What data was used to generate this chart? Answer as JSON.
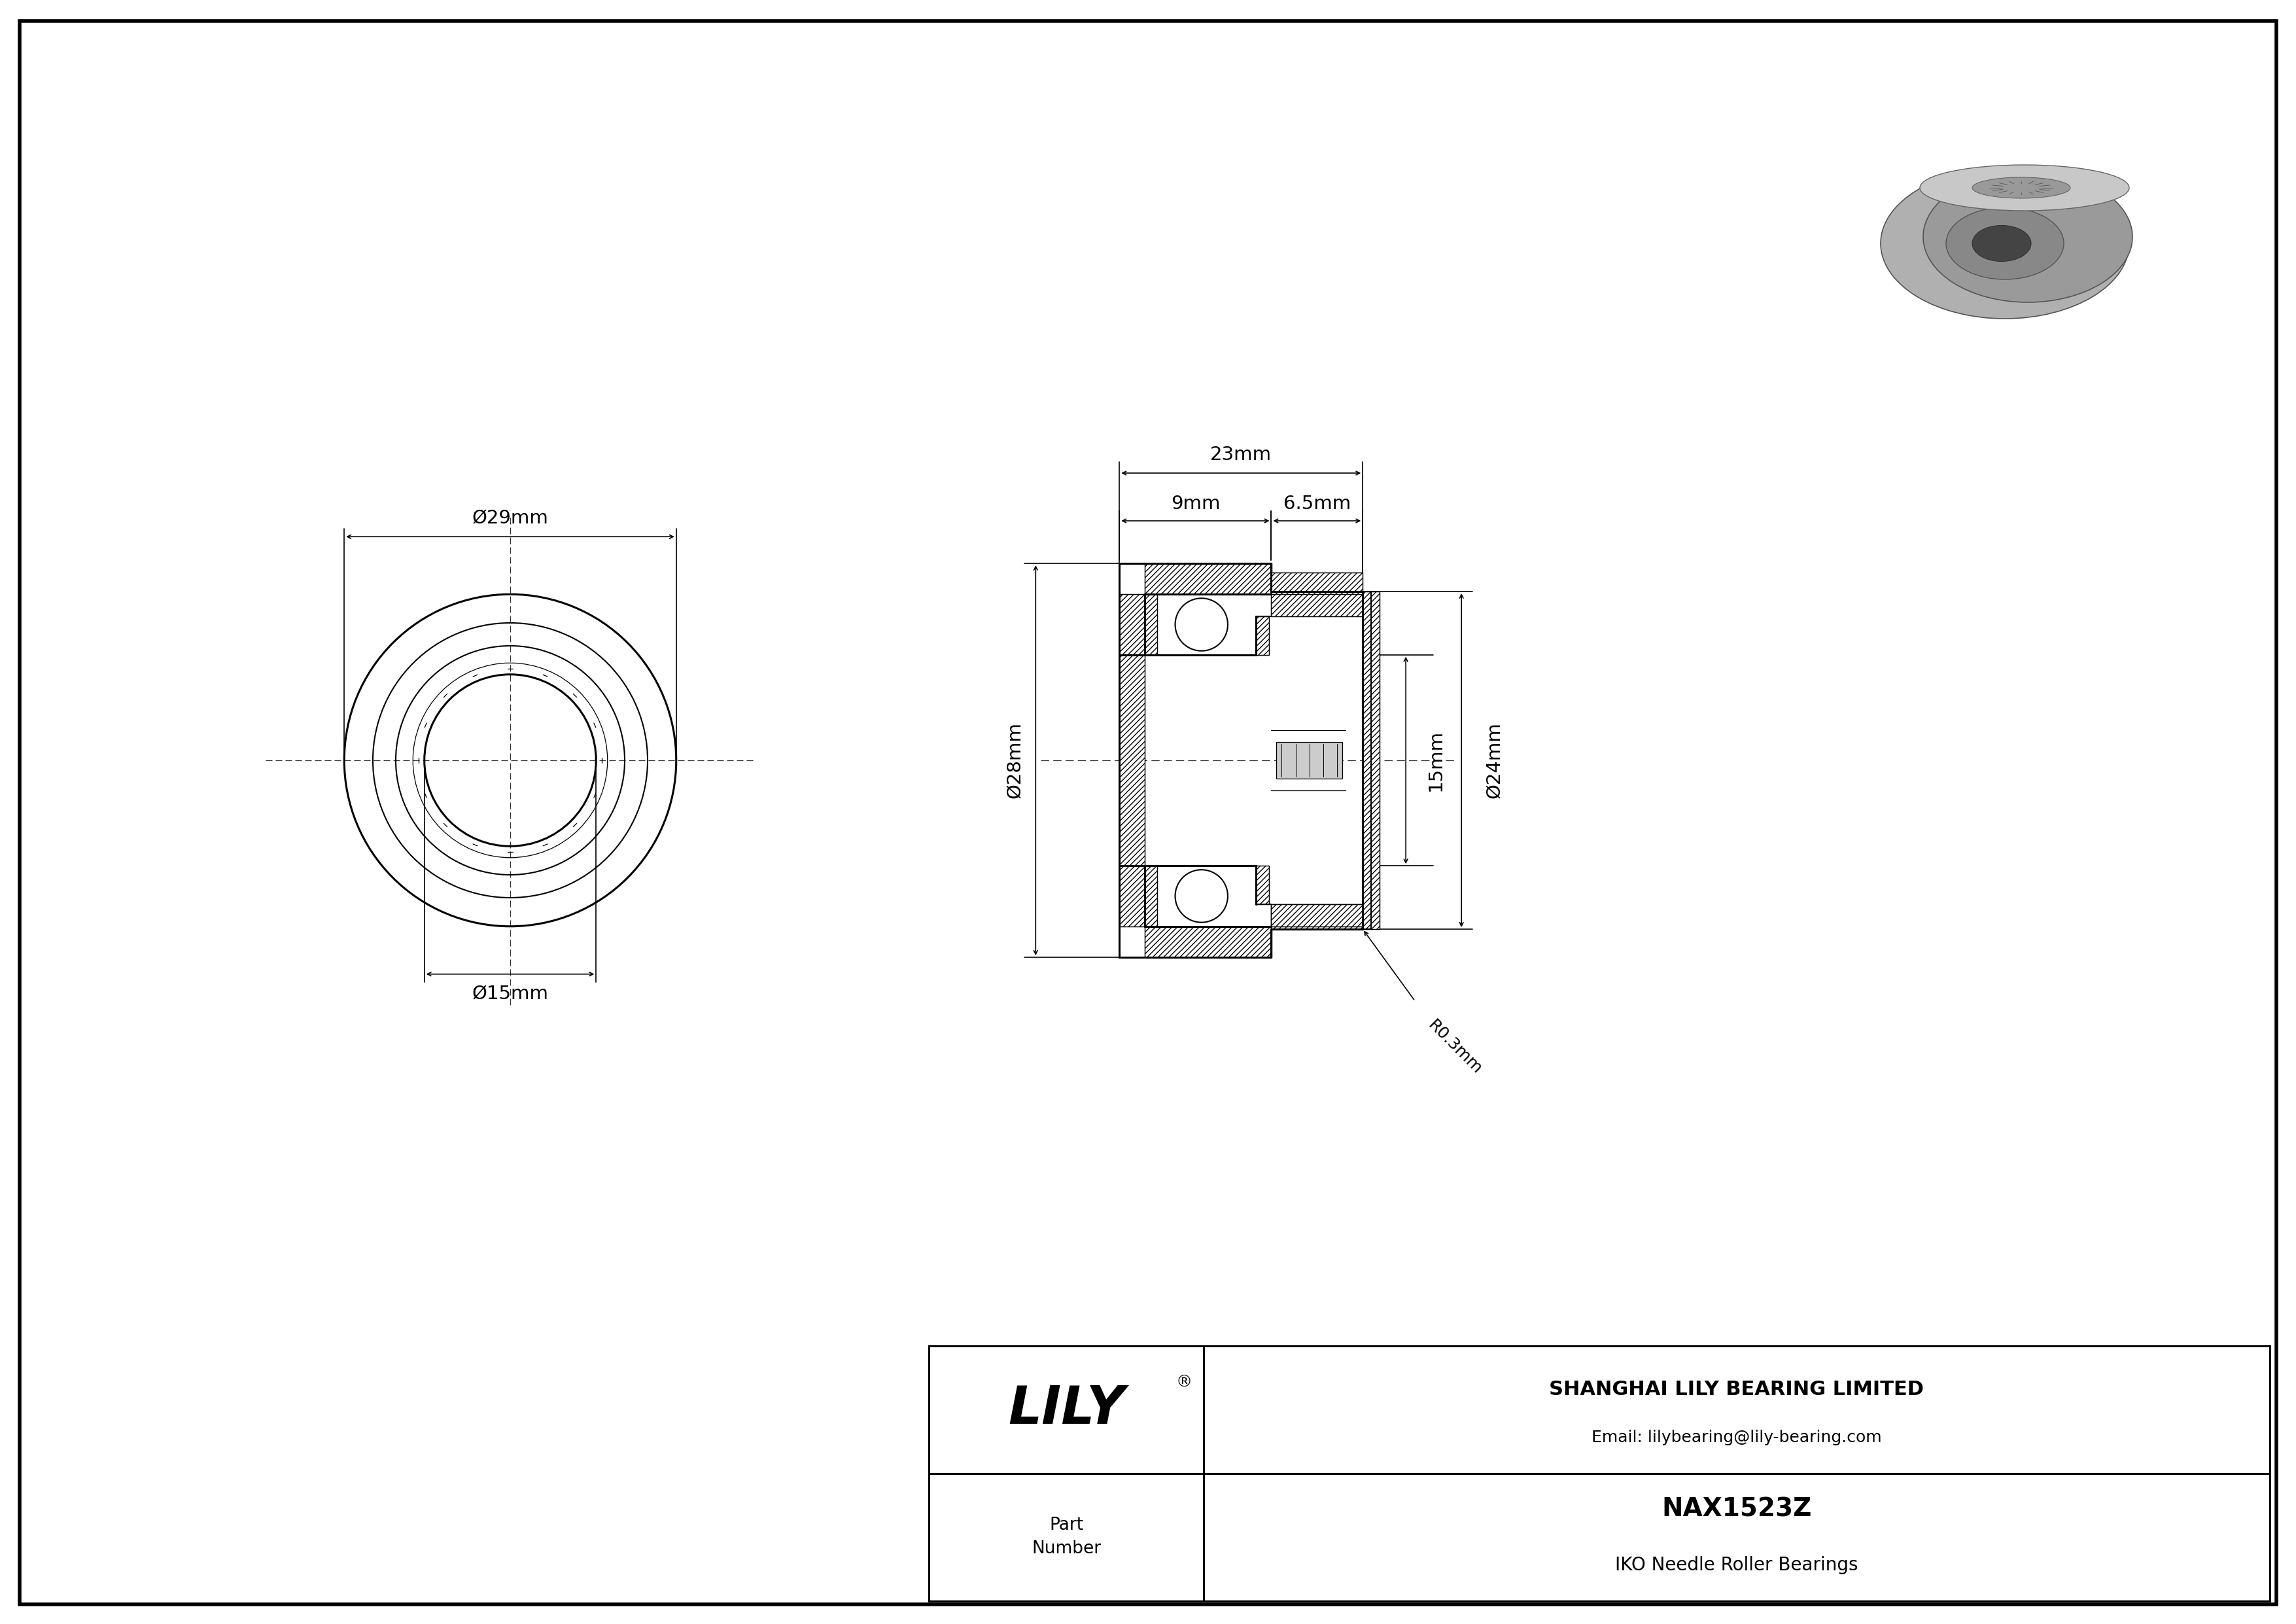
{
  "bg_color": "#ffffff",
  "line_color": "#000000",
  "title": "NAX1523Z",
  "subtitle": "IKO Needle Roller Bearings",
  "company": "SHANGHAI LILY BEARING LIMITED",
  "email": "Email: lilybearing@lily-bearing.com",
  "part_label": "Part\nNumber",
  "lily_text": "LILY",
  "dims_label": {
    "od": "Ø29mm",
    "id": "Ø15mm",
    "flange_od": "Ø28mm",
    "inner_od": "Ø24mm",
    "total_width": "23mm",
    "needle_width": "9mm",
    "thrust_width": "6.5mm",
    "height15": "15mm",
    "radius": "R0.3mm"
  }
}
